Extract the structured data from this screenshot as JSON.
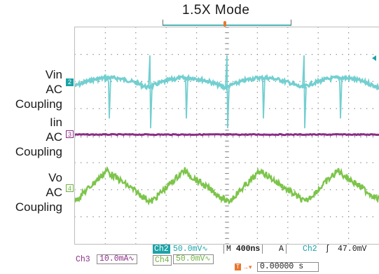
{
  "title": "1.5X Mode",
  "trigger_marker": "T",
  "channels": {
    "vin": {
      "name": "Vin",
      "coupling_line1": "AC",
      "coupling_line2": "Coupling",
      "marker": "2",
      "color": "#73cfd0"
    },
    "iin": {
      "name": "Iin",
      "coupling_line1": "AC",
      "coupling_line2": "Coupling",
      "marker": "3",
      "color": "#8b2d86"
    },
    "vo": {
      "name": "Vo",
      "coupling_line1": "AC",
      "coupling_line2": "Coupling",
      "marker": "4",
      "color": "#7cc44a"
    }
  },
  "readout": {
    "ch2_label": "Ch2",
    "ch2_scale": "50.0mV",
    "ch3_label": "Ch3",
    "ch3_scale": "10.0mA",
    "ch4_label": "Ch4",
    "ch4_scale": "50.0mV",
    "timebase_prefix": "M",
    "timebase": "400ns",
    "trig_mode": "A",
    "trig_source": "Ch2",
    "trig_slope": "ʃ",
    "trig_level": "47.0mV",
    "position_value": "0.00000 s"
  },
  "colors": {
    "ch2": "#1aa3a7",
    "ch3": "#8b2d86",
    "ch4": "#6fb43f",
    "trigger": "#e8772e",
    "grid": "#777777"
  }
}
